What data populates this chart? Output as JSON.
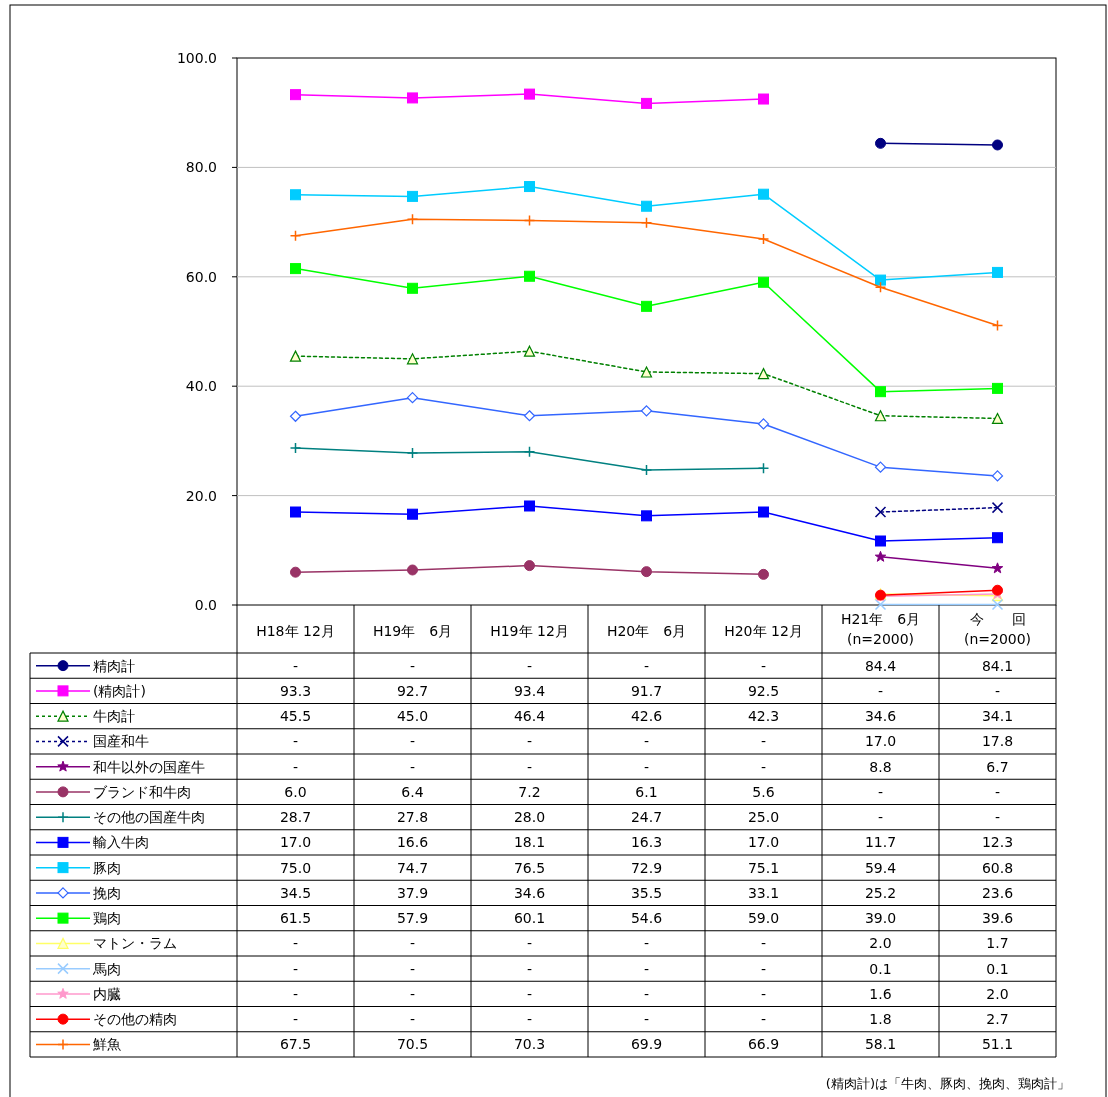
{
  "chart_data": {
    "type": "line",
    "categories": [
      "H18年 12月",
      "H19年　6月",
      "H19年 12月",
      "H20年　6月",
      "H20年 12月",
      "H21年　6月\n(n=2000)",
      "今　　回\n(n=2000)"
    ],
    "ylim": [
      0,
      100
    ],
    "yticks": [
      {
        "value": 0,
        "label": "0.0"
      },
      {
        "value": 20,
        "label": "20.0"
      },
      {
        "value": 40,
        "label": "40.0"
      },
      {
        "value": 60,
        "label": "60.0"
      },
      {
        "value": 80,
        "label": "80.0"
      },
      {
        "value": 100,
        "label": "100.0"
      }
    ],
    "grid": "y",
    "legend": "bottom",
    "series": [
      {
        "name": "精肉計",
        "color": "#000080",
        "marker": "circle",
        "line_style": "solid",
        "values": [
          null,
          null,
          null,
          null,
          null,
          84.4,
          84.1
        ],
        "value_labels": [
          "-",
          "-",
          "-",
          "-",
          "-",
          "84.4",
          "84.1"
        ]
      },
      {
        "name": "(精肉計)",
        "color": "#ff00ff",
        "marker": "square",
        "line_style": "solid",
        "values": [
          93.3,
          92.7,
          93.4,
          91.7,
          92.5,
          null,
          null
        ],
        "value_labels": [
          "93.3",
          "92.7",
          "93.4",
          "91.7",
          "92.5",
          "-",
          "-"
        ]
      },
      {
        "name": "牛肉計",
        "color": "#008000",
        "marker": "triangle",
        "line_style": "dotted",
        "values": [
          45.5,
          45.0,
          46.4,
          42.6,
          42.3,
          34.6,
          34.1
        ],
        "value_labels": [
          "45.5",
          "45.0",
          "46.4",
          "42.6",
          "42.3",
          "34.6",
          "34.1"
        ]
      },
      {
        "name": "国産和牛",
        "color": "#000080",
        "marker": "cross",
        "line_style": "dotted",
        "values": [
          null,
          null,
          null,
          null,
          null,
          17.0,
          17.8
        ],
        "value_labels": [
          "-",
          "-",
          "-",
          "-",
          "-",
          "17.0",
          "17.8"
        ]
      },
      {
        "name": "和牛以外の国産牛",
        "color": "#800080",
        "marker": "star",
        "line_style": "solid",
        "values": [
          null,
          null,
          null,
          null,
          null,
          8.8,
          6.7
        ],
        "value_labels": [
          "-",
          "-",
          "-",
          "-",
          "-",
          "8.8",
          "6.7"
        ]
      },
      {
        "name": "ブランド和牛肉",
        "color": "#993366",
        "marker": "circle",
        "line_style": "solid",
        "values": [
          6.0,
          6.4,
          7.2,
          6.1,
          5.6,
          null,
          null
        ],
        "value_labels": [
          "6.0",
          "6.4",
          "7.2",
          "6.1",
          "5.6",
          "-",
          "-"
        ]
      },
      {
        "name": "その他の国産牛肉",
        "color": "#008080",
        "marker": "plus",
        "line_style": "solid",
        "values": [
          28.7,
          27.8,
          28.0,
          24.7,
          25.0,
          null,
          null
        ],
        "value_labels": [
          "28.7",
          "27.8",
          "28.0",
          "24.7",
          "25.0",
          "-",
          "-"
        ]
      },
      {
        "name": "輸入牛肉",
        "color": "#0000ff",
        "marker": "square",
        "line_style": "solid",
        "values": [
          17.0,
          16.6,
          18.1,
          16.3,
          17.0,
          11.7,
          12.3
        ],
        "value_labels": [
          "17.0",
          "16.6",
          "18.1",
          "16.3",
          "17.0",
          "11.7",
          "12.3"
        ]
      },
      {
        "name": "豚肉",
        "color": "#00ccff",
        "marker": "square",
        "line_style": "solid",
        "values": [
          75.0,
          74.7,
          76.5,
          72.9,
          75.1,
          59.4,
          60.8
        ],
        "value_labels": [
          "75.0",
          "74.7",
          "76.5",
          "72.9",
          "75.1",
          "59.4",
          "60.8"
        ]
      },
      {
        "name": "挽肉",
        "color": "#3366ff",
        "marker": "diamond",
        "line_style": "solid",
        "values": [
          34.5,
          37.9,
          34.6,
          35.5,
          33.1,
          25.2,
          23.6
        ],
        "value_labels": [
          "34.5",
          "37.9",
          "34.6",
          "35.5",
          "33.1",
          "25.2",
          "23.6"
        ]
      },
      {
        "name": "鶏肉",
        "color": "#00ff00",
        "marker": "square",
        "line_style": "solid",
        "values": [
          61.5,
          57.9,
          60.1,
          54.6,
          59.0,
          39.0,
          39.6
        ],
        "value_labels": [
          "61.5",
          "57.9",
          "60.1",
          "54.6",
          "59.0",
          "39.0",
          "39.6"
        ]
      },
      {
        "name": "マトン・ラム",
        "color": "#ffff66",
        "marker": "triangle",
        "line_style": "solid",
        "values": [
          null,
          null,
          null,
          null,
          null,
          2.0,
          1.7
        ],
        "value_labels": [
          "-",
          "-",
          "-",
          "-",
          "-",
          "2.0",
          "1.7"
        ]
      },
      {
        "name": "馬肉",
        "color": "#99ccff",
        "marker": "cross",
        "line_style": "solid",
        "values": [
          null,
          null,
          null,
          null,
          null,
          0.1,
          0.1
        ],
        "value_labels": [
          "-",
          "-",
          "-",
          "-",
          "-",
          "0.1",
          "0.1"
        ]
      },
      {
        "name": "内臓",
        "color": "#ff99cc",
        "marker": "star",
        "line_style": "solid",
        "values": [
          null,
          null,
          null,
          null,
          null,
          1.6,
          2.0
        ],
        "value_labels": [
          "-",
          "-",
          "-",
          "-",
          "-",
          "1.6",
          "2.0"
        ]
      },
      {
        "name": "その他の精肉",
        "color": "#ff0000",
        "marker": "circle",
        "line_style": "solid",
        "values": [
          null,
          null,
          null,
          null,
          null,
          1.8,
          2.7
        ],
        "value_labels": [
          "-",
          "-",
          "-",
          "-",
          "-",
          "1.8",
          "2.7"
        ]
      },
      {
        "name": "鮮魚",
        "color": "#ff6600",
        "marker": "plus",
        "line_style": "solid",
        "values": [
          67.5,
          70.5,
          70.3,
          69.9,
          66.9,
          58.1,
          51.1
        ],
        "value_labels": [
          "67.5",
          "70.5",
          "70.3",
          "69.9",
          "66.9",
          "58.1",
          "51.1"
        ]
      }
    ],
    "annotations": [
      "(精肉計)は「牛肉、豚肉、挽肉、鶏肉計」"
    ]
  }
}
